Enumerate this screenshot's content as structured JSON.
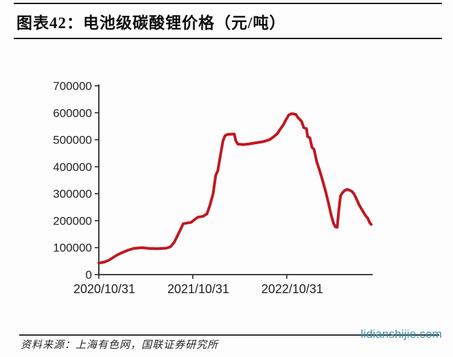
{
  "header": {
    "title": "图表42：电池级碳酸锂价格（元/吨）"
  },
  "footer": {
    "source": "资料来源：上海有色网，国联证券研究所",
    "watermark": "lidianshijie.com"
  },
  "colors": {
    "line": "#c01820",
    "axis": "#262626",
    "tick_label": "#1f1f1f",
    "watermark": "#3b91a8",
    "rule": "#1c1c1c"
  },
  "chart_data": {
    "type": "line",
    "title": "电池级碳酸锂价格（元/吨）",
    "grid": false,
    "legend": "none",
    "x_axis": {
      "start": "2020-10-31",
      "end": "2023-09-30",
      "ticks": [
        {
          "date": "2020-10-31",
          "label": "2020/10/31"
        },
        {
          "date": "2021-10-31",
          "label": "2021/10/31"
        },
        {
          "date": "2022-10-31",
          "label": "2022/10/31"
        }
      ]
    },
    "y_axis": {
      "min": 0,
      "max": 700000,
      "ticks": [
        0,
        100000,
        200000,
        300000,
        400000,
        500000,
        600000,
        700000
      ]
    },
    "series": [
      {
        "name": "电池级碳酸锂价格",
        "unit": "元/吨",
        "color": "#c01820",
        "points": [
          [
            "2020-10-31",
            43000
          ],
          [
            "2020-11-20",
            46000
          ],
          [
            "2020-12-10",
            54000
          ],
          [
            "2021-01-05",
            70000
          ],
          [
            "2021-01-25",
            80000
          ],
          [
            "2021-02-20",
            90000
          ],
          [
            "2021-03-15",
            97000
          ],
          [
            "2021-04-15",
            100000
          ],
          [
            "2021-05-15",
            97000
          ],
          [
            "2021-06-15",
            96000
          ],
          [
            "2021-07-20",
            98000
          ],
          [
            "2021-08-05",
            103000
          ],
          [
            "2021-08-20",
            120000
          ],
          [
            "2021-09-01",
            143000
          ],
          [
            "2021-09-12",
            165000
          ],
          [
            "2021-09-24",
            189000
          ],
          [
            "2021-10-25",
            194000
          ],
          [
            "2021-11-08",
            205000
          ],
          [
            "2021-11-20",
            213000
          ],
          [
            "2021-12-10",
            216000
          ],
          [
            "2021-12-25",
            225000
          ],
          [
            "2022-01-05",
            255000
          ],
          [
            "2022-01-18",
            300000
          ],
          [
            "2022-01-28",
            368000
          ],
          [
            "2022-02-05",
            385000
          ],
          [
            "2022-02-15",
            440000
          ],
          [
            "2022-02-25",
            495000
          ],
          [
            "2022-03-05",
            515000
          ],
          [
            "2022-03-15",
            520000
          ],
          [
            "2022-04-10",
            521000
          ],
          [
            "2022-04-16",
            497000
          ],
          [
            "2022-04-24",
            484000
          ],
          [
            "2022-05-15",
            482000
          ],
          [
            "2022-06-10",
            485000
          ],
          [
            "2022-07-05",
            489000
          ],
          [
            "2022-08-01",
            493000
          ],
          [
            "2022-08-25",
            500000
          ],
          [
            "2022-09-10",
            511000
          ],
          [
            "2022-09-25",
            523000
          ],
          [
            "2022-10-05",
            538000
          ],
          [
            "2022-10-18",
            556000
          ],
          [
            "2022-10-28",
            574000
          ],
          [
            "2022-11-08",
            592000
          ],
          [
            "2022-11-20",
            597000
          ],
          [
            "2022-12-05",
            594000
          ],
          [
            "2022-12-15",
            581000
          ],
          [
            "2022-12-28",
            568000
          ],
          [
            "2023-01-05",
            545000
          ],
          [
            "2023-01-16",
            541000
          ],
          [
            "2023-01-20",
            512000
          ],
          [
            "2023-01-29",
            507000
          ],
          [
            "2023-02-06",
            472000
          ],
          [
            "2023-02-14",
            465000
          ],
          [
            "2023-02-24",
            420000
          ],
          [
            "2023-03-08",
            385000
          ],
          [
            "2023-03-19",
            350000
          ],
          [
            "2023-04-01",
            305000
          ],
          [
            "2023-04-12",
            262000
          ],
          [
            "2023-04-22",
            220000
          ],
          [
            "2023-05-01",
            190000
          ],
          [
            "2023-05-08",
            177000
          ],
          [
            "2023-05-15",
            176000
          ],
          [
            "2023-05-21",
            235000
          ],
          [
            "2023-05-28",
            292000
          ],
          [
            "2023-06-04",
            303000
          ],
          [
            "2023-06-12",
            311000
          ],
          [
            "2023-06-22",
            316000
          ],
          [
            "2023-07-02",
            313000
          ],
          [
            "2023-07-12",
            308000
          ],
          [
            "2023-07-20",
            298000
          ],
          [
            "2023-07-30",
            278000
          ],
          [
            "2023-08-09",
            257000
          ],
          [
            "2023-08-19",
            241000
          ],
          [
            "2023-08-29",
            225000
          ],
          [
            "2023-09-06",
            214000
          ],
          [
            "2023-09-11",
            209000
          ],
          [
            "2023-09-18",
            193000
          ],
          [
            "2023-09-24",
            186000
          ]
        ]
      }
    ]
  }
}
